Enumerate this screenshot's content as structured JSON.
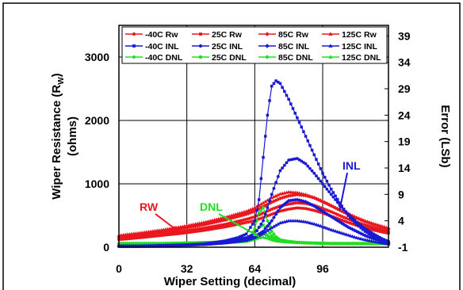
{
  "chart_data": {
    "type": "line",
    "xlabel": "Wiper Setting (decimal)",
    "ylabel": "Wiper Resistance (RW) (ohms)",
    "ylabel_line1": "Wiper Resistance (R",
    "ylabel_sub": "W",
    "ylabel_close": ")",
    "ylabel_line2": "(ohms)",
    "y2label": "Error (LSb)",
    "xlim": [
      0,
      127
    ],
    "ylim": [
      0,
      3500
    ],
    "y2lim": [
      -1,
      41
    ],
    "x_ticks": [
      0,
      32,
      64,
      96
    ],
    "y_ticks": [
      0,
      1000,
      2000,
      3000
    ],
    "y2_ticks": [
      -1,
      4,
      9,
      14,
      19,
      24,
      29,
      34,
      39
    ],
    "grid": true,
    "legend_position": "top",
    "legend": [
      {
        "label": "-40C Rw",
        "color": "#e8181e",
        "marker": "circle"
      },
      {
        "label": "25C Rw",
        "color": "#e8181e",
        "marker": "square"
      },
      {
        "label": "85C Rw",
        "color": "#e8181e",
        "marker": "diamond"
      },
      {
        "label": "125C Rw",
        "color": "#e8181e",
        "marker": "triangle"
      },
      {
        "label": "-40C INL",
        "color": "#1a1ad2",
        "marker": "square"
      },
      {
        "label": "25C INL",
        "color": "#1a1ad2",
        "marker": "circle"
      },
      {
        "label": "85C INL",
        "color": "#1a1ad2",
        "marker": "diamond"
      },
      {
        "label": "125C INL",
        "color": "#1a1ad2",
        "marker": "triangle"
      },
      {
        "label": "-40C DNL",
        "color": "#22dd22",
        "marker": "circle"
      },
      {
        "label": "25C DNL",
        "color": "#22dd22",
        "marker": "square"
      },
      {
        "label": "85C DNL",
        "color": "#22dd22",
        "marker": "diamond"
      },
      {
        "label": "125C DNL",
        "color": "#22dd22",
        "marker": "triangle"
      }
    ],
    "series": [
      {
        "name": "-40C Rw",
        "axis": "left",
        "color": "#e8181e",
        "marker": "circle",
        "x": [
          0,
          10,
          20,
          30,
          40,
          50,
          60,
          64,
          68,
          72,
          76,
          80,
          84,
          88,
          92,
          96,
          100,
          104,
          108,
          112,
          116,
          120,
          124,
          127
        ],
        "y": [
          120,
          150,
          185,
          220,
          265,
          320,
          390,
          420,
          470,
          520,
          570,
          600,
          620,
          610,
          580,
          540,
          490,
          440,
          390,
          345,
          305,
          270,
          240,
          220
        ]
      },
      {
        "name": "25C Rw",
        "axis": "left",
        "color": "#e8181e",
        "marker": "square",
        "x": [
          0,
          10,
          20,
          30,
          40,
          50,
          60,
          64,
          68,
          72,
          76,
          80,
          84,
          88,
          92,
          96,
          100,
          104,
          108,
          112,
          116,
          120,
          124,
          127
        ],
        "y": [
          140,
          170,
          210,
          250,
          300,
          360,
          440,
          480,
          540,
          600,
          650,
          680,
          700,
          690,
          660,
          610,
          560,
          500,
          445,
          395,
          350,
          310,
          275,
          250
        ]
      },
      {
        "name": "85C Rw",
        "axis": "left",
        "color": "#e8181e",
        "marker": "diamond",
        "x": [
          0,
          10,
          20,
          30,
          40,
          50,
          60,
          64,
          68,
          72,
          76,
          80,
          84,
          88,
          92,
          96,
          100,
          104,
          108,
          112,
          116,
          120,
          124,
          127
        ],
        "y": [
          165,
          200,
          245,
          295,
          355,
          430,
          520,
          570,
          640,
          710,
          770,
          810,
          830,
          815,
          780,
          720,
          655,
          585,
          520,
          460,
          405,
          360,
          320,
          290
        ]
      },
      {
        "name": "125C Rw",
        "axis": "left",
        "color": "#e8181e",
        "marker": "triangle",
        "x": [
          0,
          10,
          20,
          30,
          40,
          50,
          60,
          64,
          68,
          72,
          76,
          80,
          84,
          88,
          92,
          96,
          100,
          104,
          108,
          112,
          116,
          120,
          124,
          127
        ],
        "y": [
          185,
          225,
          270,
          325,
          390,
          470,
          565,
          620,
          700,
          780,
          840,
          870,
          860,
          830,
          785,
          725,
          660,
          595,
          530,
          470,
          415,
          370,
          330,
          300
        ]
      },
      {
        "name": "-40C INL",
        "axis": "right",
        "color": "#1a1ad2",
        "marker": "square",
        "x": [
          0,
          10,
          20,
          30,
          40,
          50,
          56,
          60,
          64,
          66,
          68,
          70,
          72,
          74,
          76,
          78,
          80,
          84,
          88,
          92,
          96,
          100,
          104,
          108,
          112,
          116,
          120,
          124,
          127
        ],
        "y": [
          -0.8,
          -0.8,
          -0.7,
          -0.6,
          -0.4,
          0.2,
          0.8,
          1.5,
          4,
          8,
          16,
          24,
          29.5,
          30.5,
          30,
          28.5,
          27,
          23.5,
          20,
          16.5,
          13,
          10,
          7.4,
          5,
          3.3,
          2,
          1,
          0.2,
          -0.2
        ]
      },
      {
        "name": "25C INL",
        "axis": "right",
        "color": "#1a1ad2",
        "marker": "circle",
        "x": [
          0,
          10,
          20,
          30,
          40,
          50,
          60,
          64,
          68,
          72,
          76,
          80,
          84,
          88,
          92,
          96,
          100,
          104,
          108,
          112,
          116,
          120,
          124,
          127
        ],
        "y": [
          -0.8,
          -0.8,
          -0.7,
          -0.6,
          -0.4,
          0,
          0.8,
          1.5,
          4,
          9,
          13.5,
          15.5,
          15.8,
          14.8,
          13,
          11,
          9,
          7,
          5.3,
          3.8,
          2.5,
          1.5,
          0.6,
          0.1
        ]
      },
      {
        "name": "85C INL",
        "axis": "right",
        "color": "#1a1ad2",
        "marker": "diamond",
        "x": [
          0,
          10,
          20,
          30,
          40,
          50,
          60,
          64,
          68,
          72,
          76,
          80,
          84,
          88,
          92,
          96,
          100,
          104,
          108,
          112,
          116,
          120,
          124,
          127
        ],
        "y": [
          -0.8,
          -0.8,
          -0.7,
          -0.6,
          -0.4,
          0,
          0.6,
          1,
          2,
          4,
          6.5,
          7.8,
          8,
          7.6,
          6.8,
          5.8,
          4.8,
          3.8,
          2.8,
          2,
          1.2,
          0.6,
          0.1,
          -0.2
        ]
      },
      {
        "name": "125C INL",
        "axis": "right",
        "color": "#1a1ad2",
        "marker": "triangle",
        "x": [
          0,
          10,
          20,
          30,
          40,
          50,
          60,
          64,
          68,
          72,
          76,
          80,
          84,
          88,
          92,
          96,
          100,
          104,
          108,
          112,
          116,
          120,
          124,
          127
        ],
        "y": [
          -0.8,
          -0.8,
          -0.7,
          -0.6,
          -0.5,
          -0.2,
          0.3,
          0.8,
          1.6,
          2.7,
          3.6,
          4,
          4,
          3.8,
          3.4,
          2.9,
          2.3,
          1.8,
          1.3,
          0.8,
          0.4,
          0.1,
          -0.2,
          -0.4
        ]
      },
      {
        "name": "-40C DNL",
        "axis": "right",
        "color": "#22dd22",
        "marker": "circle",
        "x": [
          0,
          10,
          20,
          30,
          40,
          50,
          56,
          60,
          62,
          64,
          66,
          68,
          70,
          72,
          74,
          76,
          80,
          84,
          90,
          100,
          110,
          120,
          127
        ],
        "y": [
          -0.3,
          -0.3,
          -0.3,
          -0.2,
          -0.1,
          0,
          0.3,
          0.6,
          1.2,
          2.5,
          5.5,
          6.5,
          4,
          2,
          1,
          0.4,
          0.1,
          -0.1,
          -0.2,
          -0.3,
          -0.3,
          -0.3,
          -0.3
        ]
      },
      {
        "name": "25C DNL",
        "axis": "right",
        "color": "#22dd22",
        "marker": "square",
        "x": [
          0,
          10,
          20,
          30,
          40,
          50,
          56,
          60,
          62,
          64,
          66,
          68,
          70,
          72,
          74,
          76,
          80,
          84,
          90,
          100,
          110,
          120,
          127
        ],
        "y": [
          -0.3,
          -0.3,
          -0.3,
          -0.2,
          -0.1,
          0,
          0.2,
          0.4,
          0.8,
          1.5,
          2.8,
          3.2,
          2.2,
          1.2,
          0.6,
          0.3,
          0.1,
          -0.1,
          -0.2,
          -0.3,
          -0.3,
          -0.3,
          -0.3
        ]
      },
      {
        "name": "85C DNL",
        "axis": "right",
        "color": "#22dd22",
        "marker": "diamond",
        "x": [
          0,
          10,
          20,
          30,
          40,
          50,
          56,
          60,
          62,
          64,
          66,
          68,
          70,
          72,
          74,
          76,
          80,
          84,
          90,
          100,
          110,
          120,
          127
        ],
        "y": [
          -0.3,
          -0.3,
          -0.3,
          -0.3,
          -0.2,
          -0.1,
          0,
          0.2,
          0.4,
          0.8,
          1.4,
          1.6,
          1.2,
          0.7,
          0.4,
          0.2,
          0,
          -0.1,
          -0.2,
          -0.3,
          -0.3,
          -0.3,
          -0.3
        ]
      },
      {
        "name": "125C DNL",
        "axis": "right",
        "color": "#22dd22",
        "marker": "triangle",
        "x": [
          0,
          10,
          20,
          30,
          40,
          50,
          56,
          60,
          62,
          64,
          66,
          68,
          70,
          72,
          74,
          76,
          80,
          84,
          90,
          100,
          110,
          120,
          127
        ],
        "y": [
          -0.3,
          -0.3,
          -0.3,
          -0.3,
          -0.2,
          -0.1,
          0,
          0.1,
          0.3,
          0.5,
          0.8,
          0.9,
          0.7,
          0.4,
          0.2,
          0.1,
          0,
          -0.1,
          -0.2,
          -0.3,
          -0.3,
          -0.3,
          -0.3
        ]
      }
    ],
    "annotations": [
      {
        "text": "RW",
        "color": "#e8181e",
        "target_x": 28,
        "target_y": 250,
        "axis": "left"
      },
      {
        "text": "DNL",
        "color": "#22dd22",
        "target_x": 66,
        "target_y": 1,
        "axis": "right"
      },
      {
        "text": "INL",
        "color": "#1a1ad2",
        "target_x": 104,
        "target_y": 6,
        "axis": "right"
      }
    ]
  }
}
